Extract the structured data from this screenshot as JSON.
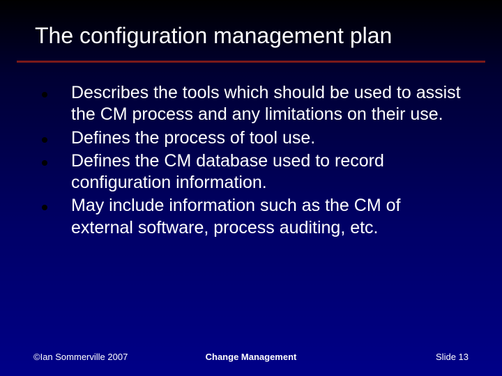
{
  "slide": {
    "title": "The configuration management plan",
    "title_color": "#ffffff",
    "title_fontsize": 32,
    "divider_color": "#7a1a1a",
    "background_gradient": [
      "#000000",
      "#000033",
      "#000066",
      "#000088"
    ],
    "bullets": [
      "Describes the tools which should be used to assist the CM process and any limitations on their use.",
      "Defines the process of tool use.",
      "Defines the CM database used to record configuration information.",
      "May include information such as the CM of external software, process auditing, etc."
    ],
    "bullet_color": "#ffffff",
    "bullet_fontsize": 25,
    "bullet_marker_color": "#000000",
    "footer": {
      "left": "©Ian Sommerville 2007",
      "center": "Change Management",
      "right": "Slide 13",
      "color": "#ffffff",
      "fontsize": 13
    }
  }
}
